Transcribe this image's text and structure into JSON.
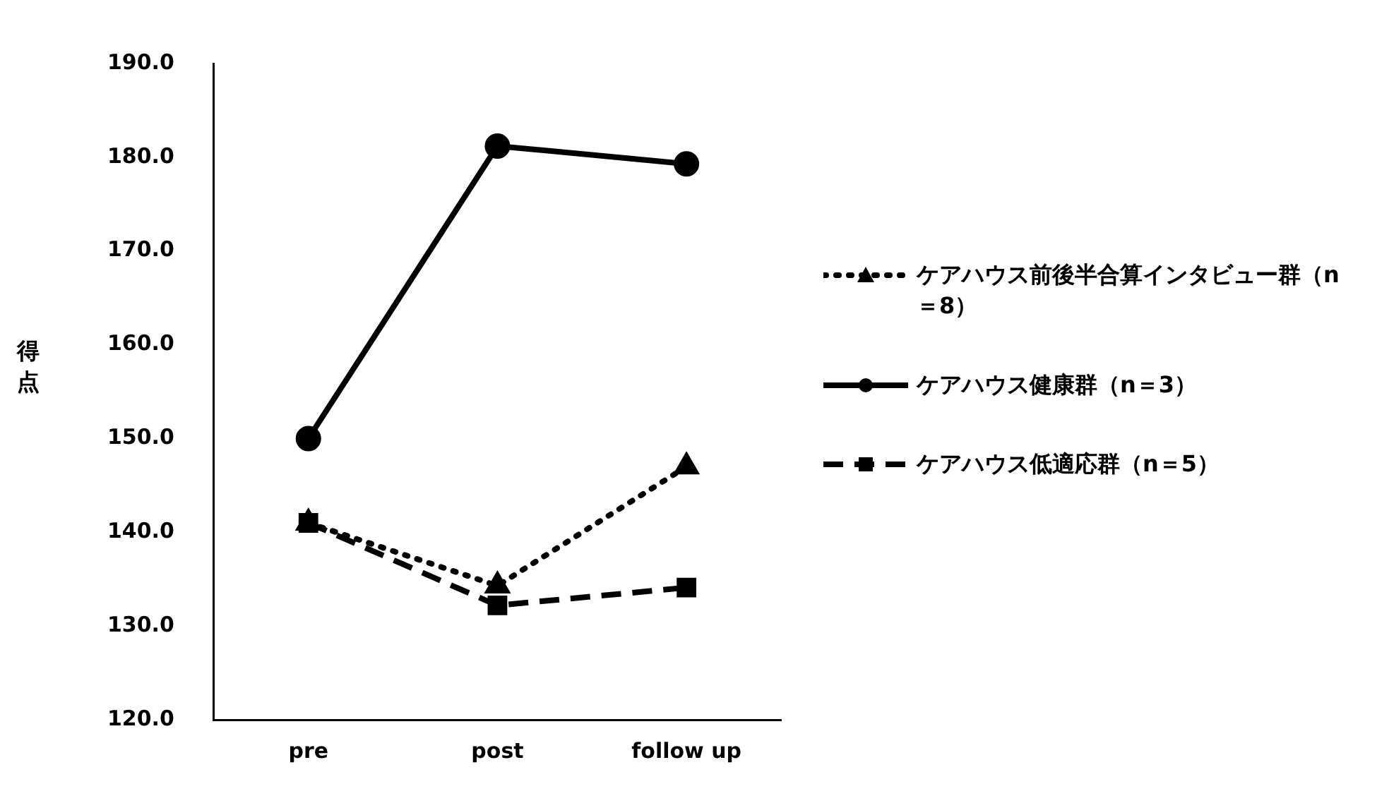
{
  "chart_data": {
    "type": "line",
    "ylabel": "得点",
    "categories": [
      "pre",
      "post",
      "follow up"
    ],
    "series": [
      {
        "name": "ケアハウス前後半合算インタビュー群（n＝8）",
        "color": "#000000",
        "values": [
          141.0,
          134.3,
          147.0
        ],
        "marker": "triangle",
        "line_style": "dotted"
      },
      {
        "name": "ケアハウス健康群（n＝3）",
        "color": "#000000",
        "values": [
          150.0,
          181.2,
          179.3
        ],
        "marker": "circle",
        "line_style": "solid"
      },
      {
        "name": "ケアハウス低適応群（n＝5）",
        "color": "#000000",
        "values": [
          141.0,
          132.2,
          134.1
        ],
        "marker": "square",
        "line_style": "dashed"
      }
    ],
    "ylim": [
      120,
      190
    ],
    "yticks": [
      {
        "value": 120,
        "label": "120.0"
      },
      {
        "value": 130,
        "label": "130.0"
      },
      {
        "value": 140,
        "label": "140.0"
      },
      {
        "value": 150,
        "label": "150.0"
      },
      {
        "value": 160,
        "label": "160.0"
      },
      {
        "value": 170,
        "label": "170.0"
      },
      {
        "value": 180,
        "label": "180.0"
      },
      {
        "value": 190,
        "label": "190.0"
      }
    ],
    "grid": false,
    "legend": "right"
  }
}
